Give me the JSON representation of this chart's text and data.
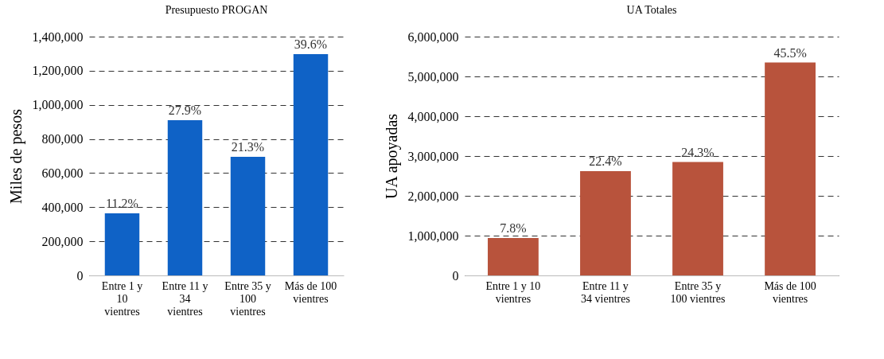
{
  "chart_data": [
    {
      "type": "bar",
      "title": "Presupuesto PROGAN",
      "ylabel": "Miles de pesos",
      "categories": [
        "Entre 1 y 10 vientres",
        "Entre 11 y 34 vientres",
        "Entre 35 y 100 vientres",
        "Más de 100 vientres"
      ],
      "values": [
        364000,
        910000,
        695000,
        1297000
      ],
      "annotations": [
        {
          "text": "11.2%",
          "x": "Entre 1 y 10 vientres",
          "y": 364000
        },
        {
          "text": "27.9%",
          "x": "Entre 11 y 34 vientres",
          "y": 910000
        },
        {
          "text": "21.3%",
          "x": "Entre 35 y 100 vientres",
          "y": 695000
        },
        {
          "text": "39.6%",
          "x": "Más de 100 vientres",
          "y": 1297000
        }
      ],
      "color": "#0f62c6",
      "ylim": [
        0,
        1400000
      ],
      "yticks": [
        0,
        {
          "value": 200000,
          "label": "200,000"
        },
        {
          "value": 400000,
          "label": "400,000"
        },
        {
          "value": 600000,
          "label": "600,000"
        },
        {
          "value": 800000,
          "label": "800,000"
        },
        {
          "value": 1000000,
          "label": "1,000,000"
        },
        {
          "value": 1200000,
          "label": "1,200,000"
        },
        {
          "value": 1400000,
          "label": "1,400,000"
        }
      ],
      "grid": "y"
    },
    {
      "type": "bar",
      "title": "UA Totales",
      "ylabel": "UA apoyadas",
      "categories": [
        "Entre 1 y 10 vientres",
        "Entre 11 y 34 vientres",
        "Entre 35 y 100 vientres",
        "Más de 100 vientres"
      ],
      "values": [
        940000,
        2620000,
        2850000,
        5350000
      ],
      "annotations": [
        {
          "text": "7.8%",
          "x": "Entre 1 y 10 vientres",
          "y": 940000
        },
        {
          "text": "22.4%",
          "x": "Entre 11 y 34 vientres",
          "y": 2620000
        },
        {
          "text": "24.3%",
          "x": "Entre 35 y 100 vientres",
          "y": 2850000
        },
        {
          "text": "45.5%",
          "x": "Más de 100 vientres",
          "y": 5350000
        }
      ],
      "color": "#b8533c",
      "ylim": [
        0,
        6000000
      ],
      "yticks": [
        0,
        {
          "value": 1000000,
          "label": "1,000,000"
        },
        {
          "value": 2000000,
          "label": "2,000,000"
        },
        {
          "value": 3000000,
          "label": "3,000,000"
        },
        {
          "value": 4000000,
          "label": "4,000,000"
        },
        {
          "value": 5000000,
          "label": "5,000,000"
        },
        {
          "value": 6000000,
          "label": "6,000,000"
        }
      ],
      "grid": "y"
    }
  ]
}
